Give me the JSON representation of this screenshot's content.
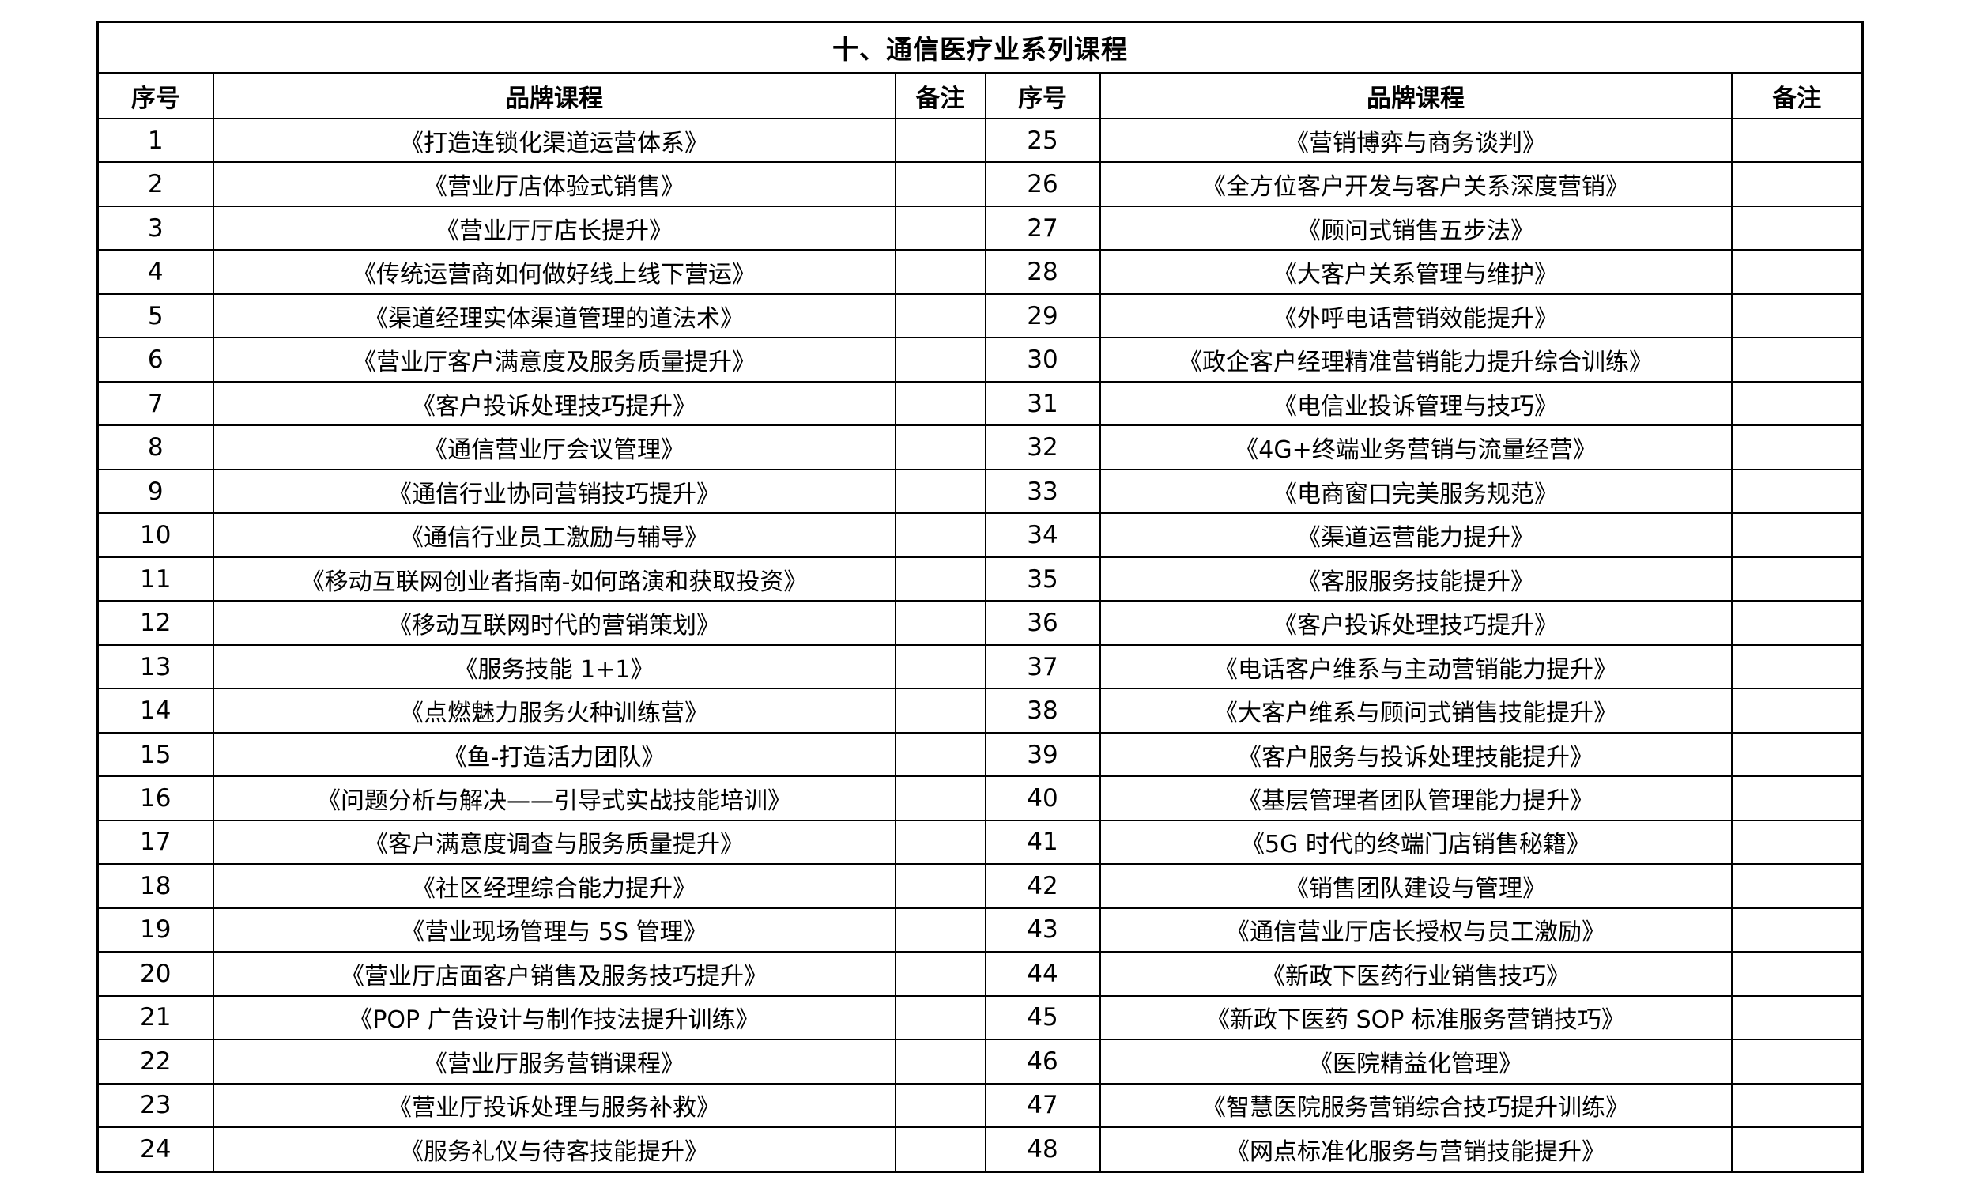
{
  "page": {
    "title": "十、通信医疗业系列课程"
  },
  "colors": {
    "border": "#000000",
    "background": "#ffffff",
    "text": "#000000"
  },
  "table": {
    "headers": {
      "no": "序号",
      "course": "品牌课程",
      "remark": "备注"
    },
    "left_rows": [
      {
        "no": "1",
        "course": "《打造连锁化渠道运营体系》",
        "remark": ""
      },
      {
        "no": "2",
        "course": "《营业厅店体验式销售》",
        "remark": ""
      },
      {
        "no": "3",
        "course": "《营业厅厅店长提升》",
        "remark": ""
      },
      {
        "no": "4",
        "course": "《传统运营商如何做好线上线下营运》",
        "remark": ""
      },
      {
        "no": "5",
        "course": "《渠道经理实体渠道管理的道法术》",
        "remark": ""
      },
      {
        "no": "6",
        "course": "《营业厅客户满意度及服务质量提升》",
        "remark": ""
      },
      {
        "no": "7",
        "course": "《客户投诉处理技巧提升》",
        "remark": ""
      },
      {
        "no": "8",
        "course": "《通信营业厅会议管理》",
        "remark": ""
      },
      {
        "no": "9",
        "course": "《通信行业协同营销技巧提升》",
        "remark": ""
      },
      {
        "no": "10",
        "course": "《通信行业员工激励与辅导》",
        "remark": ""
      },
      {
        "no": "11",
        "course": "《移动互联网创业者指南-如何路演和获取投资》",
        "remark": ""
      },
      {
        "no": "12",
        "course": "《移动互联网时代的营销策划》",
        "remark": ""
      },
      {
        "no": "13",
        "course": "《服务技能 1+1》",
        "remark": ""
      },
      {
        "no": "14",
        "course": "《点燃魅力服务火种训练营》",
        "remark": ""
      },
      {
        "no": "15",
        "course": "《鱼-打造活力团队》",
        "remark": ""
      },
      {
        "no": "16",
        "course": "《问题分析与解决——引导式实战技能培训》",
        "remark": ""
      },
      {
        "no": "17",
        "course": "《客户满意度调查与服务质量提升》",
        "remark": ""
      },
      {
        "no": "18",
        "course": "《社区经理综合能力提升》",
        "remark": ""
      },
      {
        "no": "19",
        "course": "《营业现场管理与 5S 管理》",
        "remark": ""
      },
      {
        "no": "20",
        "course": "《营业厅店面客户销售及服务技巧提升》",
        "remark": ""
      },
      {
        "no": "21",
        "course": "《POP 广告设计与制作技法提升训练》",
        "remark": ""
      },
      {
        "no": "22",
        "course": "《营业厅服务营销课程》",
        "remark": ""
      },
      {
        "no": "23",
        "course": "《营业厅投诉处理与服务补救》",
        "remark": ""
      },
      {
        "no": "24",
        "course": "《服务礼仪与待客技能提升》",
        "remark": ""
      }
    ],
    "right_rows": [
      {
        "no": "25",
        "course": "《营销博弈与商务谈判》",
        "remark": ""
      },
      {
        "no": "26",
        "course": "《全方位客户开发与客户关系深度营销》",
        "remark": ""
      },
      {
        "no": "27",
        "course": "《顾问式销售五步法》",
        "remark": ""
      },
      {
        "no": "28",
        "course": "《大客户关系管理与维护》",
        "remark": ""
      },
      {
        "no": "29",
        "course": "《外呼电话营销效能提升》",
        "remark": ""
      },
      {
        "no": "30",
        "course": "《政企客户经理精准营销能力提升综合训练》",
        "remark": ""
      },
      {
        "no": "31",
        "course": "《电信业投诉管理与技巧》",
        "remark": ""
      },
      {
        "no": "32",
        "course": "《4G+终端业务营销与流量经营》",
        "remark": ""
      },
      {
        "no": "33",
        "course": "《电商窗口完美服务规范》",
        "remark": ""
      },
      {
        "no": "34",
        "course": "《渠道运营能力提升》",
        "remark": ""
      },
      {
        "no": "35",
        "course": "《客服服务技能提升》",
        "remark": ""
      },
      {
        "no": "36",
        "course": "《客户投诉处理技巧提升》",
        "remark": ""
      },
      {
        "no": "37",
        "course": "《电话客户维系与主动营销能力提升》",
        "remark": ""
      },
      {
        "no": "38",
        "course": "《大客户维系与顾问式销售技能提升》",
        "remark": ""
      },
      {
        "no": "39",
        "course": "《客户服务与投诉处理技能提升》",
        "remark": ""
      },
      {
        "no": "40",
        "course": "《基层管理者团队管理能力提升》",
        "remark": ""
      },
      {
        "no": "41",
        "course": "《5G 时代的终端门店销售秘籍》",
        "remark": ""
      },
      {
        "no": "42",
        "course": "《销售团队建设与管理》",
        "remark": ""
      },
      {
        "no": "43",
        "course": "《通信营业厅店长授权与员工激励》",
        "remark": ""
      },
      {
        "no": "44",
        "course": "《新政下医药行业销售技巧》",
        "remark": ""
      },
      {
        "no": "45",
        "course": "《新政下医药 SOP 标准服务营销技巧》",
        "remark": ""
      },
      {
        "no": "46",
        "course": "《医院精益化管理》",
        "remark": ""
      },
      {
        "no": "47",
        "course": "《智慧医院服务营销综合技巧提升训练》",
        "remark": ""
      },
      {
        "no": "48",
        "course": "《网点标准化服务与营销技能提升》",
        "remark": ""
      }
    ]
  }
}
